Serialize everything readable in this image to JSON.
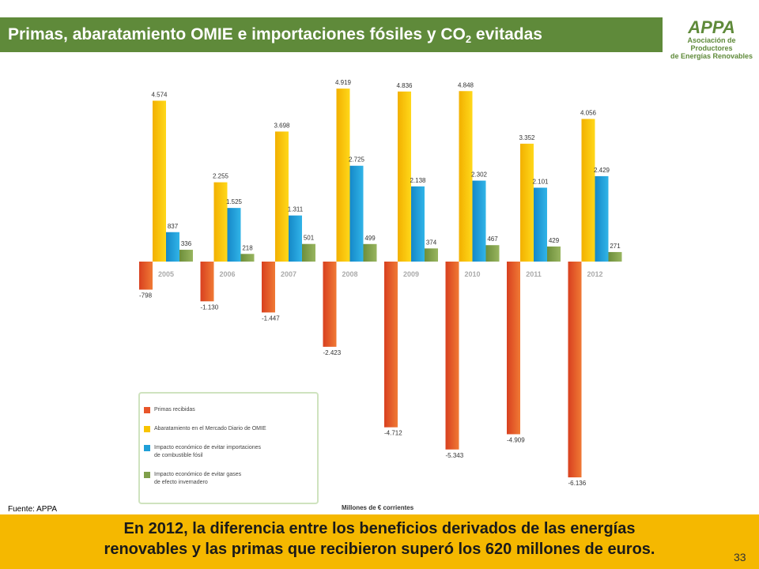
{
  "header": {
    "title_main": "Primas, abaratamiento OMIE e importaciones fósiles y CO",
    "title_sub": "2",
    "title_end": " evitadas"
  },
  "logo": {
    "text": "APPA",
    "line1": "Asociación de Productores",
    "line2": "de Energías Renovables",
    "color": "#5f8a3a"
  },
  "chart_data": {
    "type": "bar",
    "categories": [
      "2005",
      "2006",
      "2007",
      "2008",
      "2009",
      "2010",
      "2011",
      "2012"
    ],
    "series": [
      {
        "name": "Primas recibidas",
        "color": "#e8552a",
        "values": [
          -798,
          -1130,
          -1447,
          -2423,
          -4712,
          -5343,
          -4909,
          -6136
        ],
        "labels": [
          "-798",
          "-1.130",
          "-1.447",
          "-2.423",
          "-4.712",
          "-5.343",
          "-4.909",
          "-6.136"
        ]
      },
      {
        "name": "Abaratamiento en el Mercado Diario de OMIE",
        "color": "#f8c400",
        "values": [
          4574,
          2255,
          3698,
          4919,
          4836,
          4848,
          3352,
          4056
        ],
        "labels": [
          "4.574",
          "2.255",
          "3.698",
          "4.919",
          "4.836",
          "4.848",
          "3.352",
          "4.056"
        ]
      },
      {
        "name": "Impacto económico de evitar importaciones de combustible fósil",
        "color": "#1f9fd8",
        "values": [
          837,
          1525,
          1311,
          2725,
          2138,
          2302,
          2101,
          2429
        ],
        "labels": [
          "837",
          "1.525",
          "1.311",
          "2.725",
          "2.138",
          "2.302",
          "2.101",
          "2.429"
        ]
      },
      {
        "name": "Impacto económico de evitar gases de efecto invernadero",
        "color": "#7f9f4a",
        "values": [
          336,
          218,
          501,
          499,
          374,
          467,
          429,
          271
        ],
        "labels": [
          "336",
          "218",
          "501",
          "499",
          "374",
          "467",
          "429",
          "271"
        ]
      }
    ],
    "legend": [
      [
        "Primas recibidas"
      ],
      [
        "Abaratamiento en el Mercado Diario de OMIE"
      ],
      [
        "Impacto económico de evitar importaciones",
        "de combustible fósil"
      ],
      [
        "Impacto económico de evitar gases",
        "de efecto invernadero"
      ]
    ],
    "units": "Millones de € corrientes",
    "legend_position": "bottom-left"
  },
  "source": "Fuente: APPA",
  "footer": {
    "line1": "En 2012, la diferencia entre los beneficios derivados de las energías",
    "line2": "renovables y las primas que recibieron superó los 620 millones de euros."
  },
  "page_number": "33"
}
